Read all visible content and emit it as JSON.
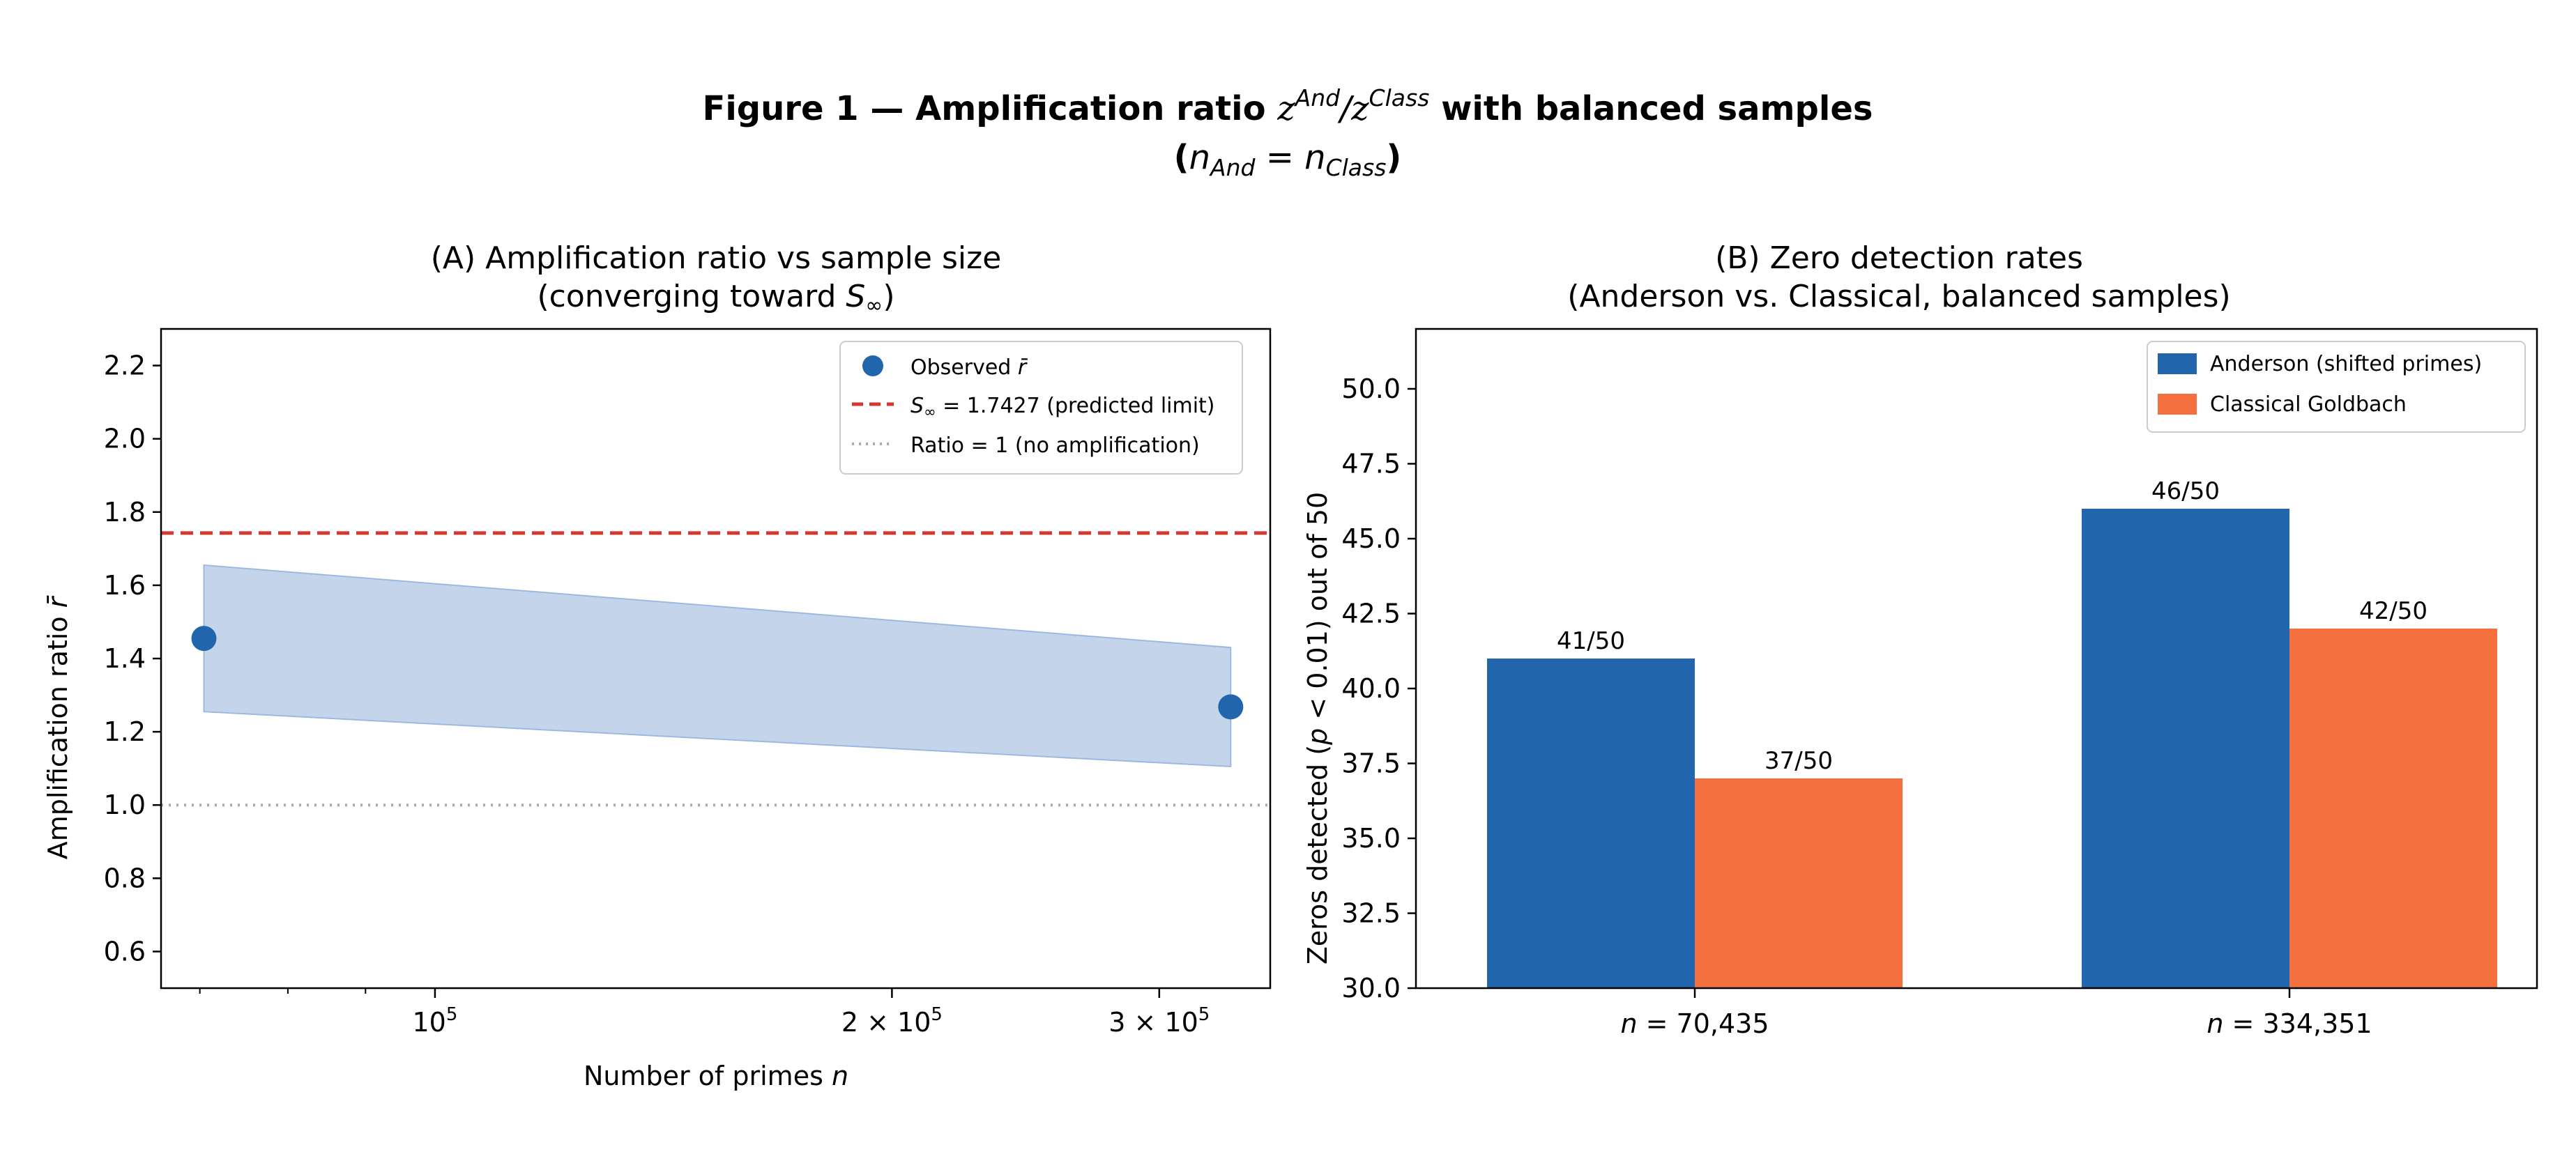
{
  "figure": {
    "title_prefix": "Figure 1 — Amplification ratio ",
    "title_z": "z",
    "title_sup_and": "And",
    "title_slash": "/",
    "title_sup_class": "Class",
    "title_suffix": " with balanced samples",
    "subtitle_open": "(",
    "subtitle_n1": "n",
    "subtitle_sub1": "And",
    "subtitle_eq": " = ",
    "subtitle_n2": "n",
    "subtitle_sub2": "Class",
    "subtitle_close": ")"
  },
  "chart_data": [
    {
      "panel": "A",
      "type": "scatter",
      "title_line1": "(A) Amplification ratio vs sample size",
      "title_line2_prefix": "(converging toward ",
      "title_line2_S": "S",
      "title_line2_inf": "∞",
      "title_line2_suffix": ")",
      "xlabel_text": "Number of primes ",
      "xlabel_var": "n",
      "ylabel_text": "Amplification ratio ",
      "ylabel_var": "r̄",
      "xscale": "log",
      "xlim": [
        66000,
        355000
      ],
      "ylim": [
        0.5,
        2.3
      ],
      "yticks": [
        0.6,
        0.8,
        1.0,
        1.2,
        1.4,
        1.6,
        1.8,
        2.0,
        2.2
      ],
      "ytick_labels": [
        "0.6",
        "0.8",
        "1.0",
        "1.2",
        "1.4",
        "1.6",
        "1.8",
        "2.0",
        "2.2"
      ],
      "xticks": [
        {
          "value": 100000,
          "base": "10",
          "exp": "5"
        },
        {
          "value": 200000,
          "base": "2 × 10",
          "exp": "5"
        },
        {
          "value": 300000,
          "base": "3 × 10",
          "exp": "5"
        }
      ],
      "x": [
        70435,
        334351
      ],
      "y": [
        1.455,
        1.268
      ],
      "band_lower": [
        1.255,
        1.105
      ],
      "band_upper": [
        1.655,
        1.43
      ],
      "limit_line": 1.7427,
      "reference_line": 1.0,
      "colors": {
        "points": "#2166ac",
        "band": "#9cb9de",
        "limit": "#d6372e",
        "reference": "#aaaaaa"
      },
      "legend_position": "upper right",
      "legend": {
        "observed_text": "Observed ",
        "observed_var": "r̄",
        "limit_S": "S",
        "limit_inf": "∞",
        "limit_text": " = 1.7427 (predicted limit)",
        "reference_text": "Ratio = 1 (no amplification)"
      }
    },
    {
      "panel": "B",
      "type": "bar",
      "title_line1": "(B) Zero detection rates",
      "title_line2": "(Anderson vs. Classical, balanced samples)",
      "ylabel_prefix": "Zeros detected (",
      "ylabel_var": "p",
      "ylabel_suffix": " < 0.01) out of 50",
      "ylim": [
        30,
        52
      ],
      "yticks": [
        30,
        32.5,
        35,
        37.5,
        40,
        42.5,
        45,
        47.5,
        50
      ],
      "ytick_labels": [
        "30.0",
        "32.5",
        "35.0",
        "37.5",
        "40.0",
        "42.5",
        "45.0",
        "47.5",
        "50.0"
      ],
      "categories": [
        {
          "var": "n",
          "text": " = 70,435"
        },
        {
          "var": "n",
          "text": " = 334,351"
        }
      ],
      "series": [
        {
          "name": "Anderson (shifted primes)",
          "color": "#2166ac",
          "values": [
            41,
            46
          ],
          "labels": [
            "41/50",
            "46/50"
          ]
        },
        {
          "name": "Classical Goldbach",
          "color": "#f4703f",
          "values": [
            37,
            42
          ],
          "labels": [
            "37/50",
            "42/50"
          ]
        }
      ],
      "legend_position": "upper right"
    }
  ]
}
